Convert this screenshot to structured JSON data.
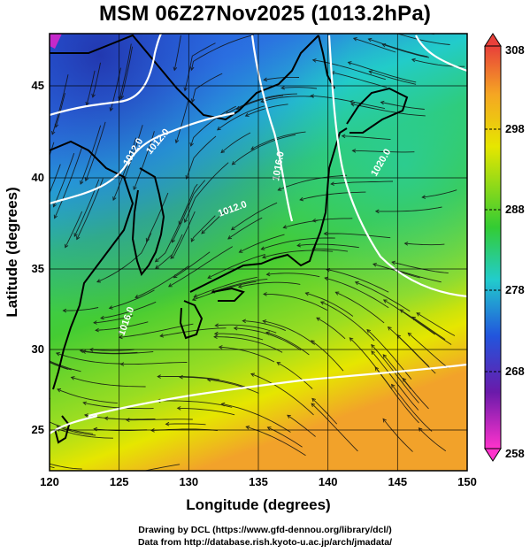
{
  "title": "MSM 06Z27Nov2025 (1013.2hPa)",
  "axes": {
    "xlabel": "Longitude (degrees)",
    "ylabel": "Latitude  (degrees)",
    "x_ticks": [
      "120",
      "125",
      "130",
      "135",
      "140",
      "145",
      "150"
    ],
    "y_ticks": [
      "25",
      "30",
      "35",
      "40",
      "45"
    ]
  },
  "colorbar": {
    "ticks": [
      "308",
      "298",
      "288",
      "278",
      "268",
      "258"
    ],
    "min": 258,
    "max": 308,
    "colors": {
      "top": "#e8403a",
      "orange": "#f5a623",
      "yellow": "#e6e600",
      "green": "#33cc33",
      "cyan": "#22cccc",
      "blue": "#2255dd",
      "purple": "#6a1aaa",
      "bottom": "#ff33cc"
    }
  },
  "isobar_labels": [
    "1012.0",
    "1012.0",
    "1016.0",
    "1020.0",
    "1012.0",
    "1016.0"
  ],
  "credits": {
    "line1": "Drawing by DCL (https://www.gfd-dennou.org/library/dcl/)",
    "line2": "Data from http://database.rish.kyoto-u.ac.jp/arch/jmadata/"
  }
}
